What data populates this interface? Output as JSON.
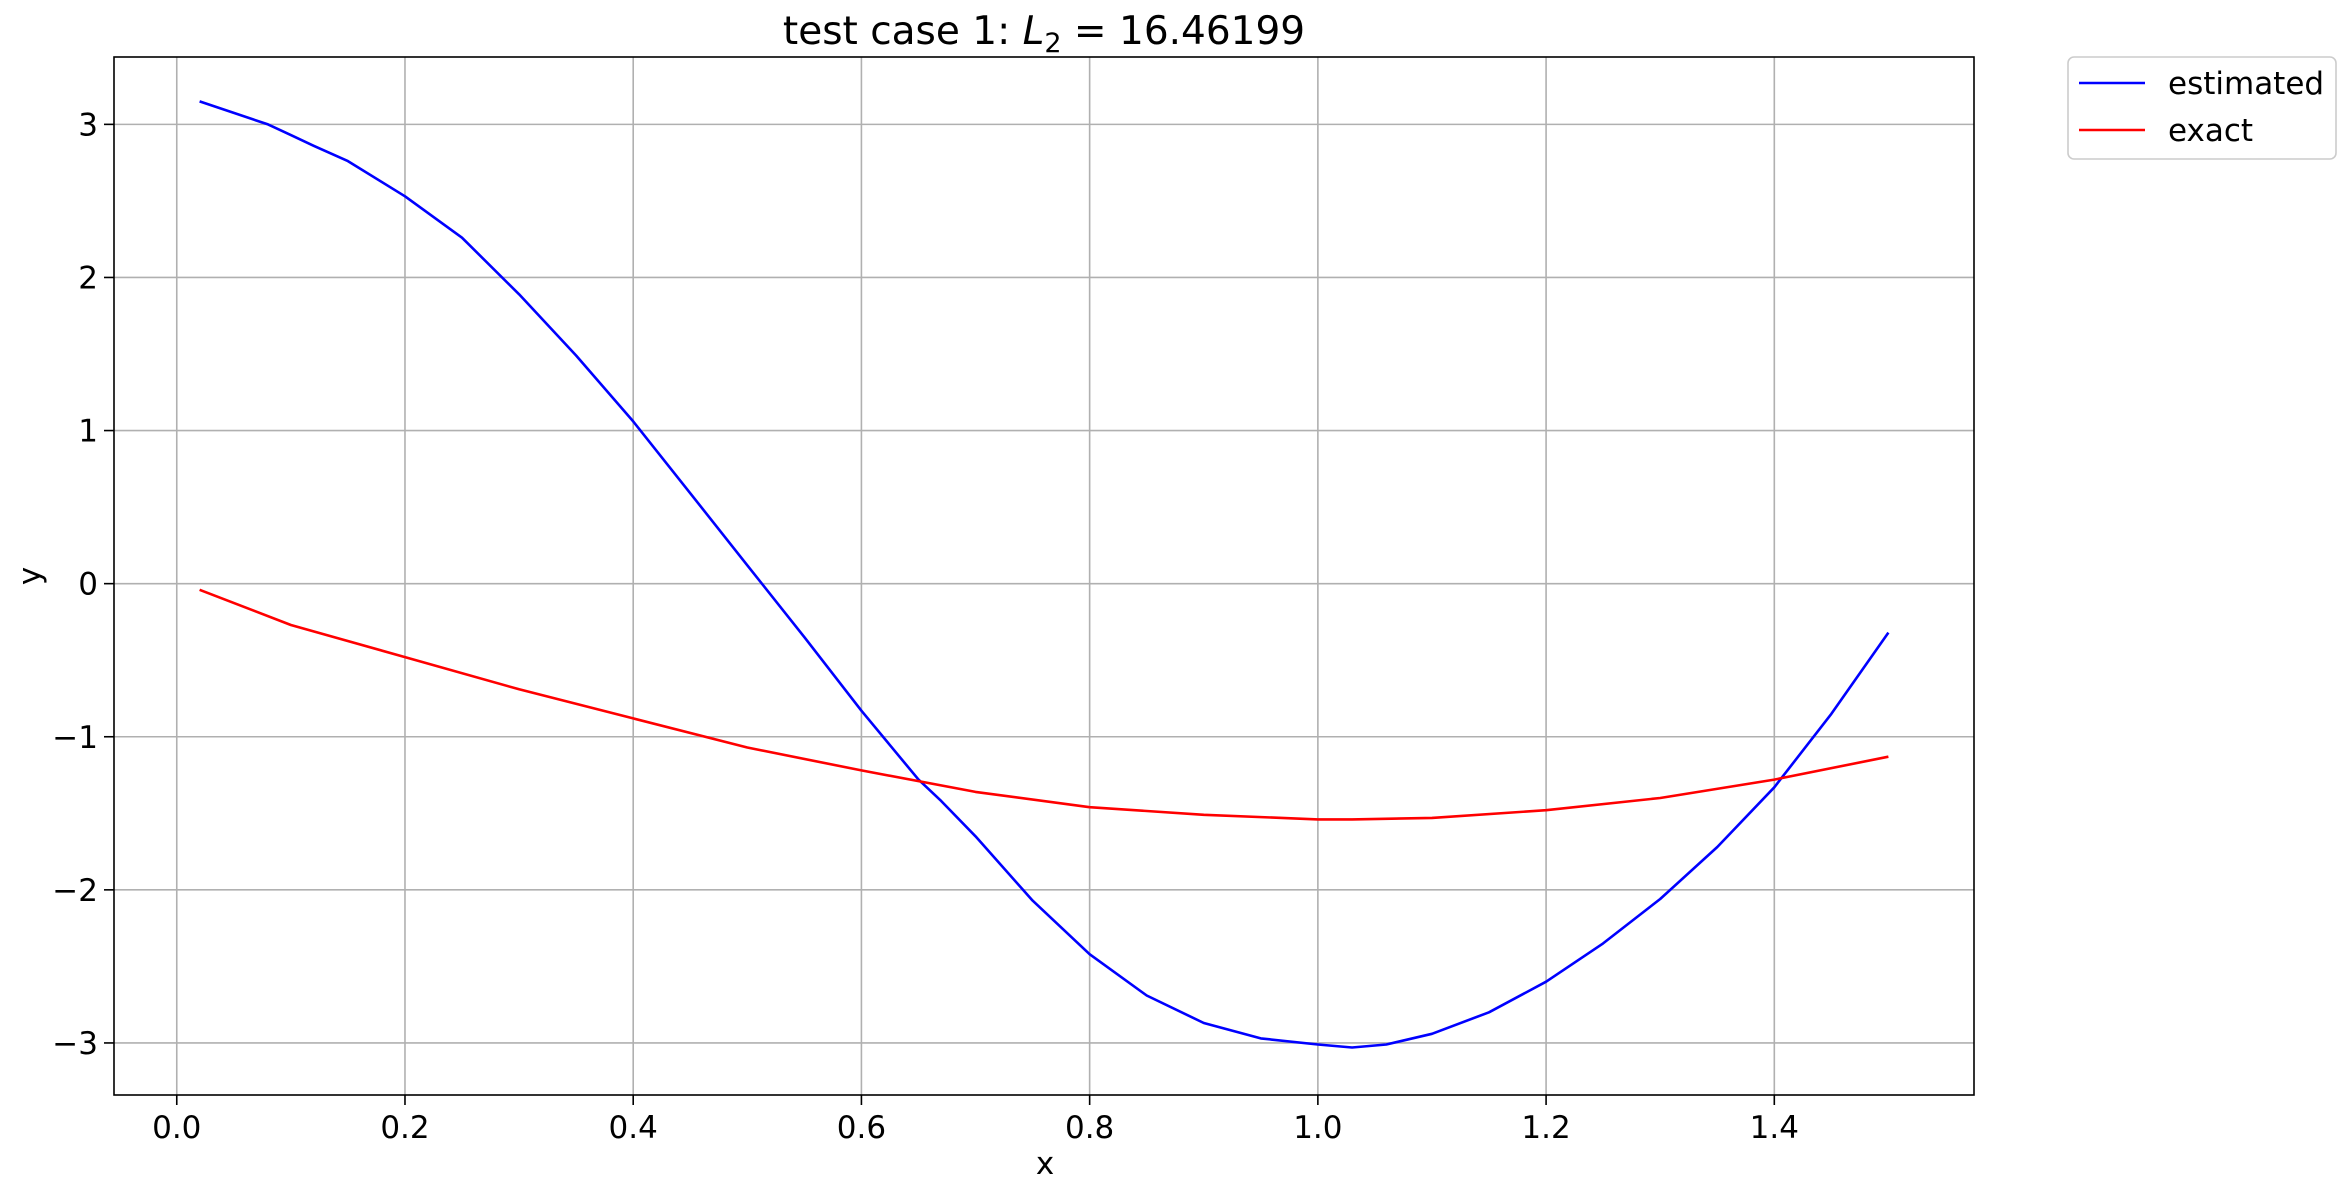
{
  "chart_data": {
    "type": "line",
    "title": {
      "prefix": "test case 1: ",
      "symbol": "L",
      "subscript": "2",
      "suffix": " = 16.46199"
    },
    "xlabel": "x",
    "ylabel": "y",
    "xlim": [
      -0.055,
      1.575
    ],
    "ylim": [
      -3.34,
      3.44
    ],
    "xticks": [
      0.0,
      0.2,
      0.4,
      0.6,
      0.8,
      1.0,
      1.2,
      1.4
    ],
    "xtick_labels": [
      "0.0",
      "0.2",
      "0.4",
      "0.6",
      "0.8",
      "1.0",
      "1.2",
      "1.4"
    ],
    "yticks": [
      -3,
      -2,
      -1,
      0,
      1,
      2,
      3
    ],
    "ytick_labels": [
      "−3",
      "−2",
      "−1",
      "0",
      "1",
      "2",
      "3"
    ],
    "grid": true,
    "legend_position": "outside-top-right",
    "series": [
      {
        "name": "estimated",
        "color": "#0000ff",
        "x": [
          0.02,
          0.08,
          0.1,
          0.12,
          0.15,
          0.2,
          0.25,
          0.3,
          0.35,
          0.4,
          0.45,
          0.5,
          0.55,
          0.6,
          0.65,
          0.67,
          0.7,
          0.75,
          0.8,
          0.85,
          0.9,
          0.95,
          1.0,
          1.03,
          1.06,
          1.1,
          1.15,
          1.2,
          1.25,
          1.3,
          1.35,
          1.4,
          1.45,
          1.5
        ],
        "y": [
          3.15,
          3.0,
          2.93,
          2.86,
          2.76,
          2.53,
          2.26,
          1.89,
          1.49,
          1.06,
          0.59,
          0.12,
          -0.35,
          -0.83,
          -1.28,
          -1.42,
          -1.65,
          -2.07,
          -2.42,
          -2.69,
          -2.87,
          -2.97,
          -3.01,
          -3.03,
          -3.01,
          -2.94,
          -2.8,
          -2.6,
          -2.35,
          -2.06,
          -1.72,
          -1.33,
          -0.85,
          -0.32
        ]
      },
      {
        "name": "exact",
        "color": "#ff0000",
        "x": [
          0.02,
          0.1,
          0.2,
          0.3,
          0.4,
          0.5,
          0.6,
          0.7,
          0.8,
          0.9,
          1.0,
          1.03,
          1.1,
          1.2,
          1.3,
          1.4,
          1.5
        ],
        "y": [
          -0.04,
          -0.27,
          -0.48,
          -0.69,
          -0.88,
          -1.07,
          -1.22,
          -1.36,
          -1.46,
          -1.51,
          -1.54,
          -1.54,
          -1.53,
          -1.48,
          -1.4,
          -1.28,
          -1.13
        ]
      }
    ]
  }
}
